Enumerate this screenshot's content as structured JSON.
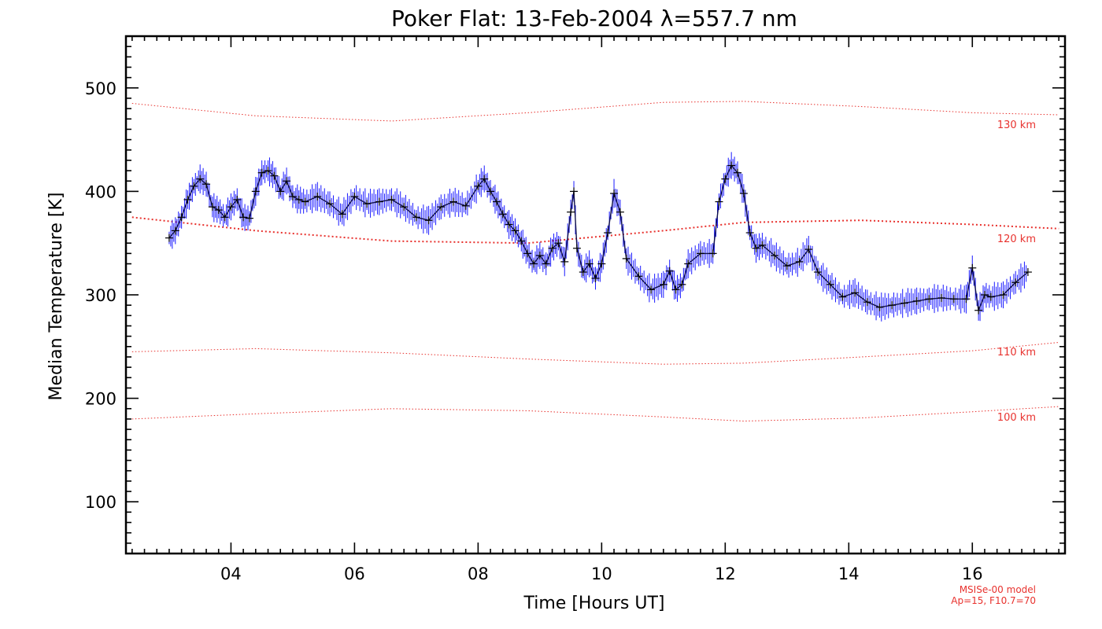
{
  "chart_data": {
    "type": "line",
    "title": "Poker Flat: 13-Feb-2004 λ=557.7 nm",
    "xlabel": "Time [Hours UT]",
    "ylabel": "Median Temperature [K]",
    "xlim": [
      2.3,
      17.5
    ],
    "ylim": [
      50,
      550
    ],
    "x_ticks": [
      4,
      6,
      8,
      10,
      12,
      14,
      16
    ],
    "x_tick_labels": [
      "04",
      "06",
      "08",
      "10",
      "12",
      "14",
      "16"
    ],
    "y_ticks": [
      100,
      200,
      300,
      400,
      500
    ],
    "y_tick_labels": [
      "100",
      "200",
      "300",
      "400",
      "500"
    ],
    "colors": {
      "data": "#1a1aff",
      "marker": "#000000",
      "model": "#e8322e",
      "frame": "#000000"
    },
    "series": [
      {
        "name": "Median Temperature",
        "x": [
          3.0,
          3.1,
          3.2,
          3.3,
          3.4,
          3.5,
          3.6,
          3.7,
          3.8,
          3.9,
          4.0,
          4.1,
          4.2,
          4.3,
          4.4,
          4.5,
          4.6,
          4.7,
          4.8,
          4.9,
          5.0,
          5.1,
          5.2,
          5.4,
          5.6,
          5.8,
          6.0,
          6.2,
          6.4,
          6.6,
          6.8,
          7.0,
          7.2,
          7.4,
          7.6,
          7.8,
          8.0,
          8.1,
          8.2,
          8.3,
          8.4,
          8.5,
          8.6,
          8.7,
          8.8,
          8.9,
          9.0,
          9.1,
          9.2,
          9.3,
          9.4,
          9.5,
          9.55,
          9.6,
          9.7,
          9.8,
          9.9,
          10.0,
          10.1,
          10.2,
          10.3,
          10.4,
          10.6,
          10.8,
          11.0,
          11.1,
          11.2,
          11.3,
          11.4,
          11.6,
          11.8,
          11.9,
          12.0,
          12.1,
          12.2,
          12.3,
          12.4,
          12.5,
          12.6,
          12.8,
          13.0,
          13.2,
          13.35,
          13.5,
          13.7,
          13.9,
          14.1,
          14.3,
          14.5,
          14.7,
          14.9,
          15.1,
          15.3,
          15.5,
          15.7,
          15.9,
          16.0,
          16.1,
          16.2,
          16.3,
          16.5,
          16.7,
          16.9
        ],
        "values": [
          355,
          362,
          375,
          392,
          405,
          412,
          407,
          385,
          382,
          375,
          385,
          392,
          375,
          374,
          400,
          418,
          420,
          415,
          400,
          410,
          395,
          392,
          390,
          395,
          388,
          378,
          395,
          388,
          390,
          392,
          385,
          375,
          372,
          385,
          390,
          386,
          405,
          412,
          400,
          390,
          378,
          368,
          362,
          352,
          340,
          330,
          338,
          330,
          345,
          350,
          332,
          380,
          400,
          345,
          322,
          330,
          316,
          330,
          360,
          398,
          380,
          335,
          318,
          305,
          310,
          323,
          305,
          310,
          330,
          340,
          340,
          390,
          412,
          425,
          418,
          398,
          360,
          345,
          348,
          338,
          328,
          332,
          344,
          322,
          310,
          298,
          302,
          293,
          288,
          290,
          292,
          294,
          296,
          297,
          296,
          296,
          326,
          285,
          300,
          298,
          300,
          312,
          322
        ]
      },
      {
        "name": "100 km",
        "x": [
          2.4,
          4.4,
          6.6,
          8.8,
          11.0,
          12.3,
          14.2,
          16.0,
          17.4
        ],
        "values": [
          180,
          185,
          190,
          188,
          182,
          178,
          181,
          187,
          192
        ]
      },
      {
        "name": "110 km",
        "x": [
          2.4,
          4.4,
          6.6,
          8.8,
          11.0,
          12.3,
          14.2,
          16.0,
          17.4
        ],
        "values": [
          245,
          248,
          244,
          238,
          233,
          234,
          240,
          246,
          254
        ]
      },
      {
        "name": "120 km",
        "x": [
          2.4,
          4.4,
          6.6,
          8.8,
          11.0,
          12.3,
          14.2,
          16.0,
          17.4
        ],
        "values": [
          375,
          362,
          352,
          350,
          362,
          370,
          372,
          368,
          364
        ]
      },
      {
        "name": "130 km",
        "x": [
          2.4,
          4.4,
          6.6,
          8.8,
          11.0,
          12.3,
          14.2,
          16.0,
          17.4
        ],
        "values": [
          485,
          473,
          468,
          476,
          486,
          487,
          482,
          476,
          474
        ]
      }
    ],
    "model_labels": [
      "130 km",
      "120 km",
      "110 km",
      "100 km"
    ],
    "model_note": [
      "MSISe-00 model",
      "Ap=15, F10.7=70"
    ]
  }
}
